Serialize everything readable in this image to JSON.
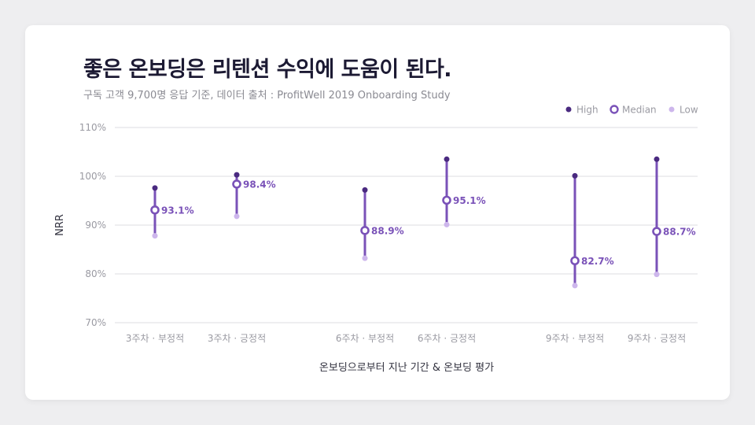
{
  "title": "좋은 온보딩은 리텐션 수익에 도움이 된다.",
  "subtitle": "구독 고객 9,700명 응답 기준, 데이터 출처 : ProfitWell 2019 Onboarding Study",
  "colors": {
    "high": "#4a2a80",
    "median": "#7a52b8",
    "low": "#cdb6ec",
    "line": "#7a52b8",
    "grid": "#dcdce0",
    "axis_text": "#9a9aa2",
    "label_text": "#7a52b8"
  },
  "chart_data": {
    "type": "range-dot",
    "title": "좋은 온보딩은 리텐션 수익에 도움이 된다.",
    "xlabel": "온보딩으로부터 지난 기간 & 온보딩 평가",
    "ylabel": "NRR",
    "ylim": [
      70,
      110
    ],
    "yticks": [
      70,
      80,
      90,
      100,
      110
    ],
    "ytick_labels": [
      "70%",
      "80%",
      "90%",
      "100%",
      "110%"
    ],
    "legend": [
      "High",
      "Median",
      "Low"
    ],
    "legend_position": "top-right",
    "grid": true,
    "categories": [
      "3주차 · 부정적",
      "3주차 · 긍정적",
      "6주차 · 부정적",
      "6주차 · 긍정적",
      "9주차 · 부정적",
      "9주차 · 긍정적"
    ],
    "groups": [
      [
        0,
        1
      ],
      [
        2,
        3
      ],
      [
        4,
        5
      ]
    ],
    "series": [
      {
        "name": "High",
        "values": [
          97.6,
          100.3,
          97.2,
          103.5,
          100.1,
          103.5
        ]
      },
      {
        "name": "Median",
        "values": [
          93.1,
          98.4,
          88.9,
          95.1,
          82.7,
          88.7
        ]
      },
      {
        "name": "Low",
        "values": [
          87.8,
          91.8,
          83.2,
          90.1,
          77.6,
          79.9
        ]
      }
    ],
    "median_labels": [
      "93.1%",
      "98.4%",
      "88.9%",
      "95.1%",
      "82.7%",
      "88.7%"
    ]
  }
}
